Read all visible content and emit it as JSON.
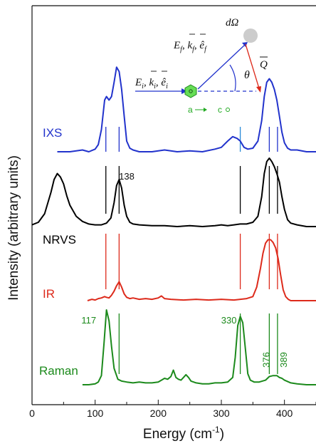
{
  "chart_data": {
    "type": "line",
    "xlabel": "Energy (cm",
    "xlabel_sup": "-1",
    "xlabel_close": ")",
    "ylabel": "Intensity (arbitrary units)",
    "xlim": [
      0,
      450
    ],
    "xticks": [
      "0",
      "100",
      "200",
      "300",
      "400"
    ],
    "xtick_values": [
      0,
      100,
      200,
      300,
      400
    ],
    "series": [
      {
        "name": "IXS",
        "color": "#2233cc",
        "x": [
          40,
          60,
          80,
          90,
          100,
          105,
          110,
          115,
          118,
          122,
          126,
          130,
          134,
          138,
          142,
          146,
          150,
          155,
          160,
          170,
          190,
          210,
          230,
          250,
          270,
          290,
          300,
          310,
          318,
          325,
          330,
          336,
          342,
          350,
          358,
          364,
          368,
          372,
          376,
          380,
          384,
          388,
          392,
          396,
          400,
          405,
          410,
          420,
          435,
          450
        ],
        "y": [
          0.0,
          0.0,
          0.02,
          0.0,
          0.03,
          0.08,
          0.25,
          0.58,
          0.62,
          0.58,
          0.62,
          0.78,
          0.95,
          0.9,
          0.7,
          0.4,
          0.12,
          0.04,
          0.02,
          0.0,
          0.0,
          0.02,
          0.0,
          0.01,
          0.0,
          0.03,
          0.05,
          0.12,
          0.17,
          0.15,
          0.12,
          0.05,
          0.03,
          0.04,
          0.12,
          0.35,
          0.62,
          0.78,
          0.82,
          0.78,
          0.7,
          0.58,
          0.4,
          0.22,
          0.1,
          0.04,
          0.02,
          0.02,
          0.0,
          0.0
        ]
      },
      {
        "name": "NRVS",
        "color": "#000000",
        "x": [
          0,
          10,
          20,
          30,
          35,
          40,
          45,
          50,
          55,
          60,
          70,
          80,
          90,
          100,
          110,
          118,
          125,
          130,
          134,
          138,
          142,
          146,
          150,
          155,
          160,
          170,
          190,
          210,
          230,
          250,
          270,
          290,
          300,
          310,
          320,
          330,
          340,
          350,
          358,
          364,
          368,
          372,
          376,
          380,
          384,
          388,
          392,
          396,
          400,
          405,
          410,
          420,
          435,
          450
        ],
        "y": [
          0.02,
          0.05,
          0.15,
          0.4,
          0.55,
          0.62,
          0.58,
          0.5,
          0.36,
          0.25,
          0.12,
          0.06,
          0.03,
          0.02,
          0.02,
          0.04,
          0.1,
          0.28,
          0.48,
          0.55,
          0.45,
          0.25,
          0.12,
          0.05,
          0.03,
          0.02,
          0.01,
          0.01,
          0.0,
          0.01,
          0.0,
          0.01,
          0.02,
          0.01,
          0.02,
          0.03,
          0.03,
          0.05,
          0.12,
          0.35,
          0.62,
          0.76,
          0.8,
          0.76,
          0.7,
          0.62,
          0.52,
          0.35,
          0.2,
          0.08,
          0.04,
          0.02,
          0.0,
          0.0
        ]
      },
      {
        "name": "IR",
        "color": "#dd2a1b",
        "x": [
          88,
          95,
          100,
          105,
          110,
          115,
          118,
          122,
          126,
          130,
          134,
          138,
          142,
          146,
          150,
          155,
          160,
          170,
          180,
          190,
          200,
          205,
          210,
          220,
          240,
          260,
          280,
          300,
          320,
          330,
          340,
          350,
          356,
          362,
          366,
          370,
          374,
          378,
          382,
          386,
          390,
          394,
          398,
          402,
          406,
          410,
          420,
          435,
          450
        ],
        "y": [
          0.0,
          0.02,
          0.01,
          0.03,
          0.04,
          0.06,
          0.05,
          0.04,
          0.08,
          0.14,
          0.22,
          0.28,
          0.2,
          0.1,
          0.05,
          0.03,
          0.04,
          0.02,
          0.03,
          0.02,
          0.04,
          0.07,
          0.03,
          0.02,
          0.01,
          0.02,
          0.01,
          0.02,
          0.01,
          0.02,
          0.03,
          0.06,
          0.2,
          0.48,
          0.7,
          0.85,
          0.9,
          0.9,
          0.86,
          0.78,
          0.62,
          0.38,
          0.16,
          0.06,
          0.02,
          0.0,
          0.0,
          0.0,
          0.0
        ]
      },
      {
        "name": "Raman",
        "color": "#1c8a1c",
        "x": [
          80,
          90,
          100,
          105,
          110,
          114,
          118,
          122,
          126,
          130,
          136,
          142,
          150,
          160,
          170,
          180,
          190,
          200,
          205,
          210,
          215,
          220,
          224,
          228,
          232,
          236,
          240,
          244,
          248,
          252,
          256,
          260,
          270,
          280,
          290,
          300,
          310,
          318,
          322,
          326,
          330,
          334,
          338,
          342,
          346,
          352,
          360,
          370,
          376,
          382,
          388,
          392,
          396,
          400,
          410,
          420,
          435,
          450
        ],
        "y": [
          0.0,
          0.0,
          0.01,
          0.03,
          0.1,
          0.45,
          0.82,
          0.7,
          0.42,
          0.18,
          0.06,
          0.04,
          0.03,
          0.02,
          0.03,
          0.02,
          0.02,
          0.03,
          0.05,
          0.07,
          0.06,
          0.09,
          0.16,
          0.08,
          0.06,
          0.05,
          0.08,
          0.11,
          0.08,
          0.04,
          0.03,
          0.02,
          0.01,
          0.01,
          0.02,
          0.02,
          0.03,
          0.08,
          0.3,
          0.65,
          0.75,
          0.68,
          0.4,
          0.12,
          0.05,
          0.03,
          0.03,
          0.05,
          0.09,
          0.1,
          0.1,
          0.08,
          0.07,
          0.05,
          0.02,
          0.01,
          0.0,
          0.0
        ]
      }
    ],
    "vlines": {
      "IXS": [
        {
          "x": 117,
          "color": "#2233cc"
        },
        {
          "x": 138,
          "color": "#2233cc"
        },
        {
          "x": 330,
          "color": "#2a8ad8"
        },
        {
          "x": 376,
          "color": "#2233cc"
        },
        {
          "x": 389,
          "color": "#2233cc"
        }
      ],
      "NRVS": [
        {
          "x": 117,
          "color": "#000000"
        },
        {
          "x": 138,
          "color": "#000000"
        },
        {
          "x": 330,
          "color": "#000000"
        },
        {
          "x": 376,
          "color": "#000000"
        },
        {
          "x": 389,
          "color": "#000000"
        }
      ],
      "IR": [
        {
          "x": 117,
          "color": "#dd2a1b"
        },
        {
          "x": 138,
          "color": "#dd2a1b"
        },
        {
          "x": 330,
          "color": "#dd2a1b"
        },
        {
          "x": 376,
          "color": "#dd2a1b"
        },
        {
          "x": 389,
          "color": "#dd2a1b"
        }
      ],
      "Raman": [
        {
          "x": 138,
          "color": "#1c8a1c"
        },
        {
          "x": 330,
          "color": "#1c8a1c"
        },
        {
          "x": 376,
          "color": "#1c8a1c"
        },
        {
          "x": 389,
          "color": "#1c8a1c"
        }
      ]
    },
    "annotations": [
      {
        "text": "138",
        "color": "#111111",
        "x": 150,
        "series": "NRVS"
      },
      {
        "text": "117",
        "color": "#1c8a1c",
        "x": 90,
        "series": "Raman"
      },
      {
        "text": "330",
        "color": "#1c8a1c",
        "x": 312,
        "series": "Raman"
      },
      {
        "text": "376",
        "color": "#1c8a1c",
        "x": 376,
        "series": "Raman",
        "rotated": true
      },
      {
        "text": "389",
        "color": "#1c8a1c",
        "x": 404,
        "series": "Raman",
        "rotated": true
      }
    ],
    "grid": false,
    "legend": "none"
  },
  "inset": {
    "incident": "E",
    "incident_sub": "i",
    "incident_rest": ", k",
    "incident_sub2": "i",
    "incident_rest2": ", ê",
    "incident_sub3": "i",
    "scattered": "E",
    "scattered_sub": "f",
    "scattered_rest": ", k",
    "scattered_sub2": "f",
    "scattered_rest2": ", ê",
    "scattered_sub3": "f",
    "solid_angle": "dΩ",
    "theta": "θ",
    "q": "Q",
    "axis_a": "a",
    "axis_c": "c",
    "colors": {
      "blue": "#2233cc",
      "red": "#dd2a1b",
      "green": "#22aa22"
    }
  }
}
